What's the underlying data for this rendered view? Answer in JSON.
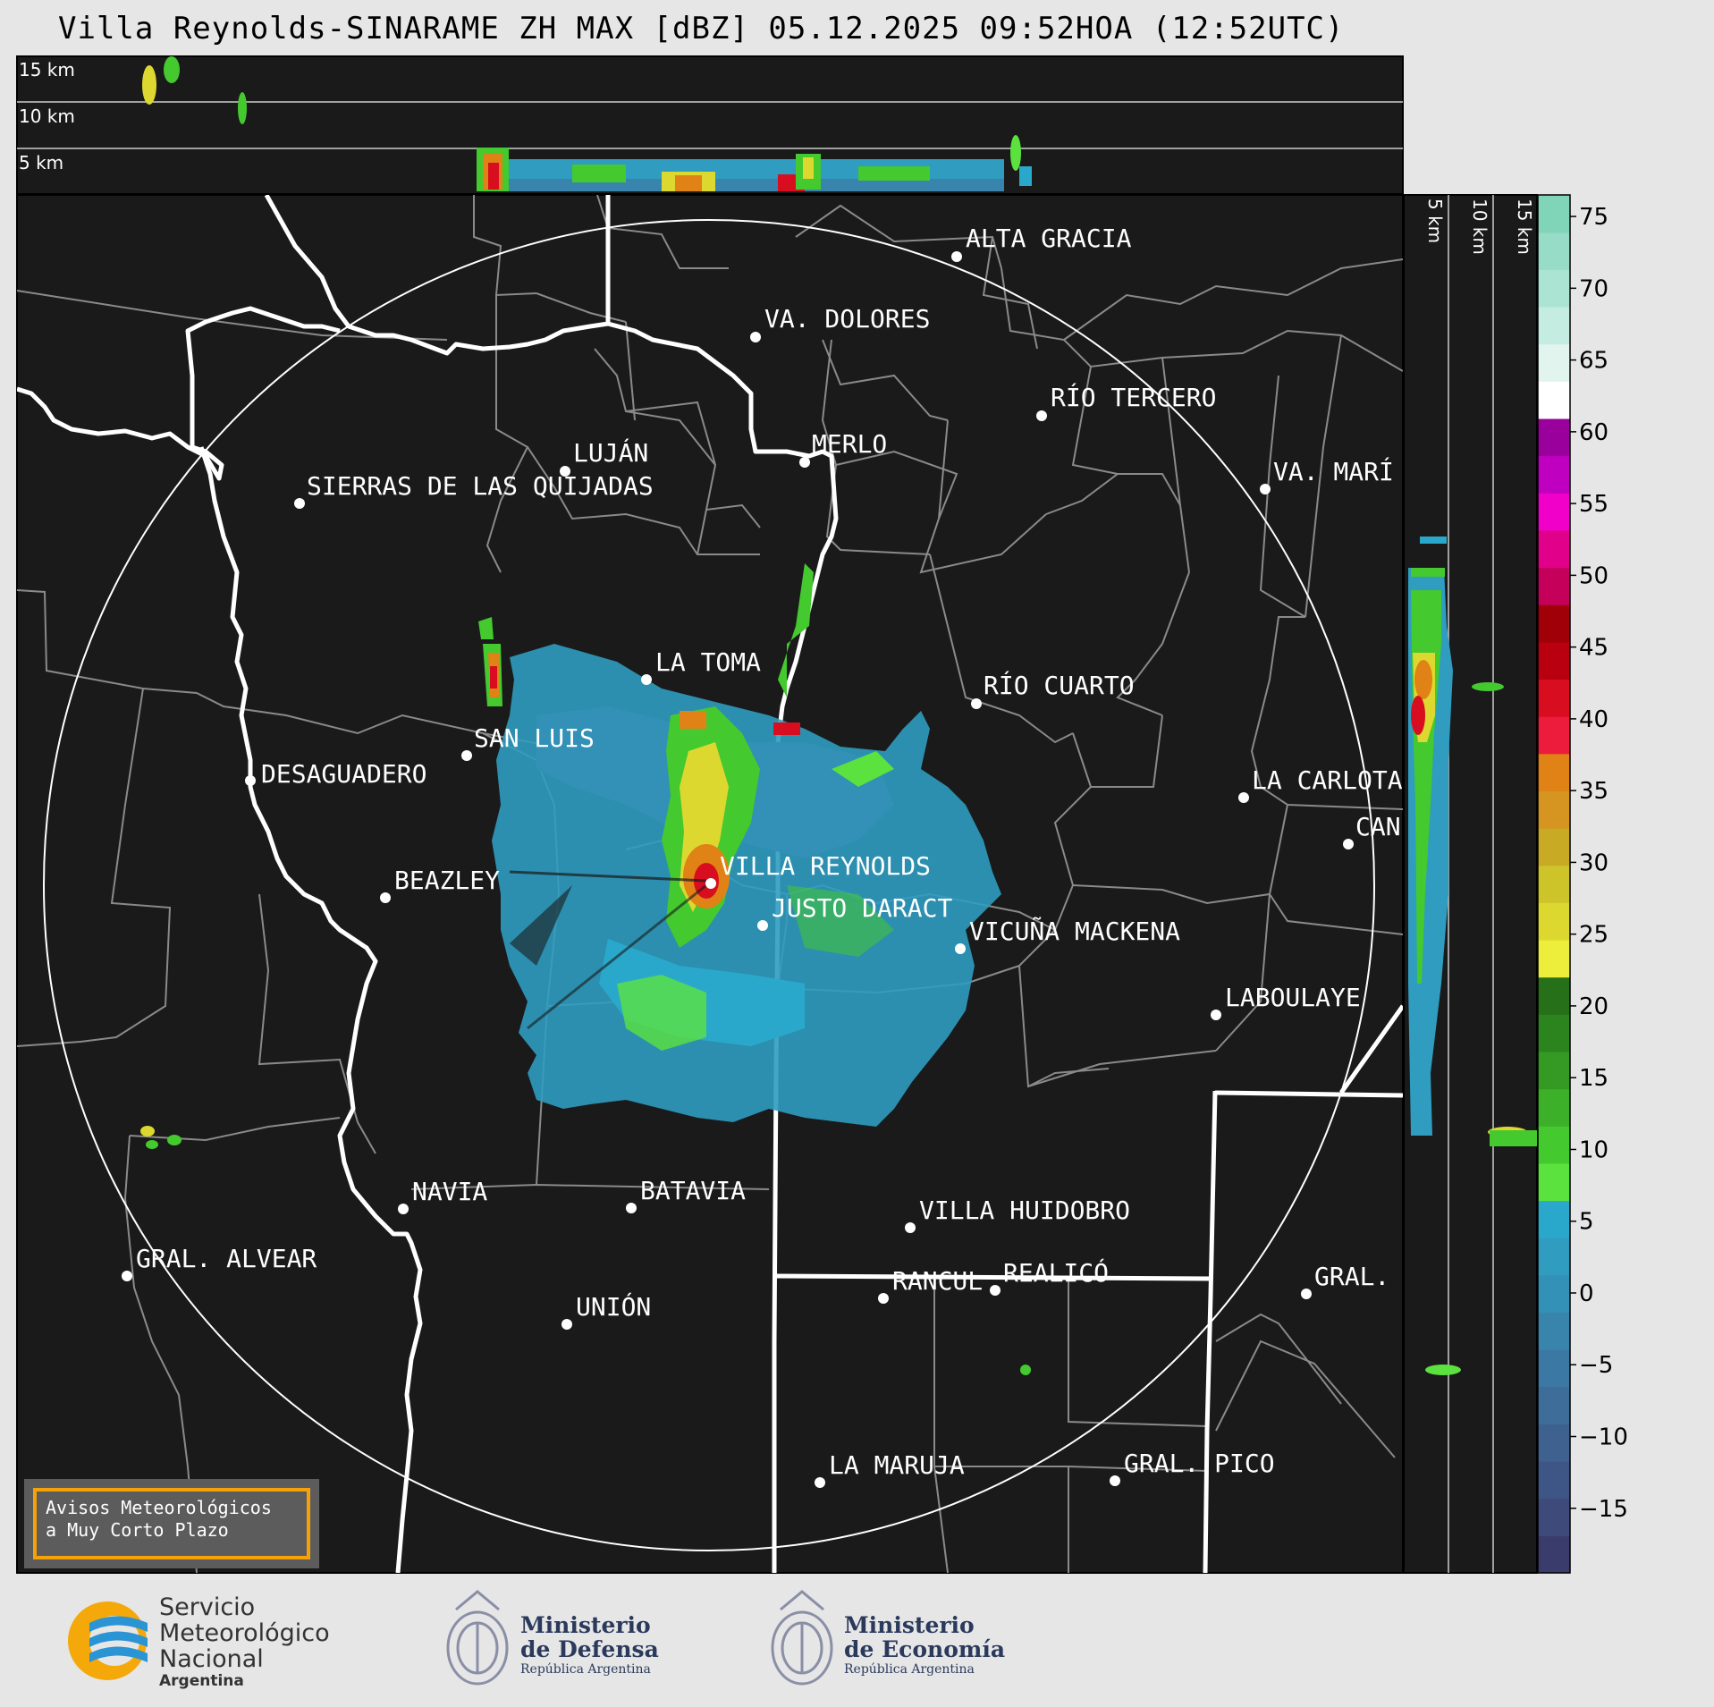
{
  "title": "Villa Reynolds-SINARAME ZH MAX [dBZ] 05.12.2025 09:52HOA (12:52UTC)",
  "top_panel": {
    "labels": [
      "15 km",
      "10 km",
      "5 km"
    ]
  },
  "side_panel": {
    "labels": [
      "5 km",
      "10 km",
      "15 km"
    ]
  },
  "colorbar": {
    "ticks": [
      "75",
      "70",
      "65",
      "60",
      "55",
      "50",
      "45",
      "40",
      "35",
      "30",
      "25",
      "20",
      "15",
      "10",
      "5",
      "0",
      "−5",
      "−10",
      "−15"
    ],
    "colors": [
      "#3a3d6b",
      "#3d4a7a",
      "#3e5686",
      "#3f6190",
      "#3e6d9a",
      "#3b78a3",
      "#3884ad",
      "#3390b6",
      "#2f9cc0",
      "#2aa8cb",
      "#5be23e",
      "#44c92f",
      "#3db02a",
      "#349a24",
      "#2c841e",
      "#26701a",
      "#eded3c",
      "#dcd830",
      "#cdc42a",
      "#c8aa25",
      "#d69520",
      "#e08215",
      "#ee1c3c",
      "#d80d20",
      "#b80010",
      "#a00008",
      "#c4005a",
      "#e0008a",
      "#f000c8",
      "#c000c0",
      "#9a009c",
      "#ffffff",
      "#e2f4ee",
      "#c4ece0",
      "#ace4d3",
      "#96dcc6",
      "#80d4b8"
    ]
  },
  "cities": [
    {
      "name": "ALTA GRACIA"
    },
    {
      "name": "VA. DOLORES"
    },
    {
      "name": "RÍO TERCERO"
    },
    {
      "name": "LUJÁN"
    },
    {
      "name": "MERLO"
    },
    {
      "name": "SIERRAS DE LAS QUIJADAS"
    },
    {
      "name": "VA. MARÍ"
    },
    {
      "name": "LA TOMA"
    },
    {
      "name": "RÍO CUARTO"
    },
    {
      "name": "SAN LUIS"
    },
    {
      "name": "DESAGUADERO"
    },
    {
      "name": "LA CARLOTA"
    },
    {
      "name": "CAN"
    },
    {
      "name": "VILLA REYNOLDS"
    },
    {
      "name": "BEAZLEY"
    },
    {
      "name": "JUSTO DARACT"
    },
    {
      "name": "VICUÑA MACKENA"
    },
    {
      "name": "LABOULAYE"
    },
    {
      "name": "NAVIA"
    },
    {
      "name": "BATAVIA"
    },
    {
      "name": "VILLA HUIDOBRO"
    },
    {
      "name": "GRAL. ALVEAR"
    },
    {
      "name": "RANCUL"
    },
    {
      "name": "REALICÓ"
    },
    {
      "name": "GRAL."
    },
    {
      "name": "UNIÓN"
    },
    {
      "name": "LA MARUJA"
    },
    {
      "name": "GRAL. PICO"
    }
  ],
  "avisos": {
    "line1": "Avisos Meteorológicos",
    "line2": "a Muy Corto Plazo"
  },
  "footer": {
    "smn": {
      "line1": "Servicio",
      "line2": "Meteorológico",
      "line3": "Nacional",
      "line4": "Argentina"
    },
    "defensa": {
      "line1": "Ministerio",
      "line2": "de Defensa",
      "line3": "República Argentina"
    },
    "economia": {
      "line1": "Ministerio",
      "line2": "de Economía",
      "line3": "República Argentina"
    }
  }
}
